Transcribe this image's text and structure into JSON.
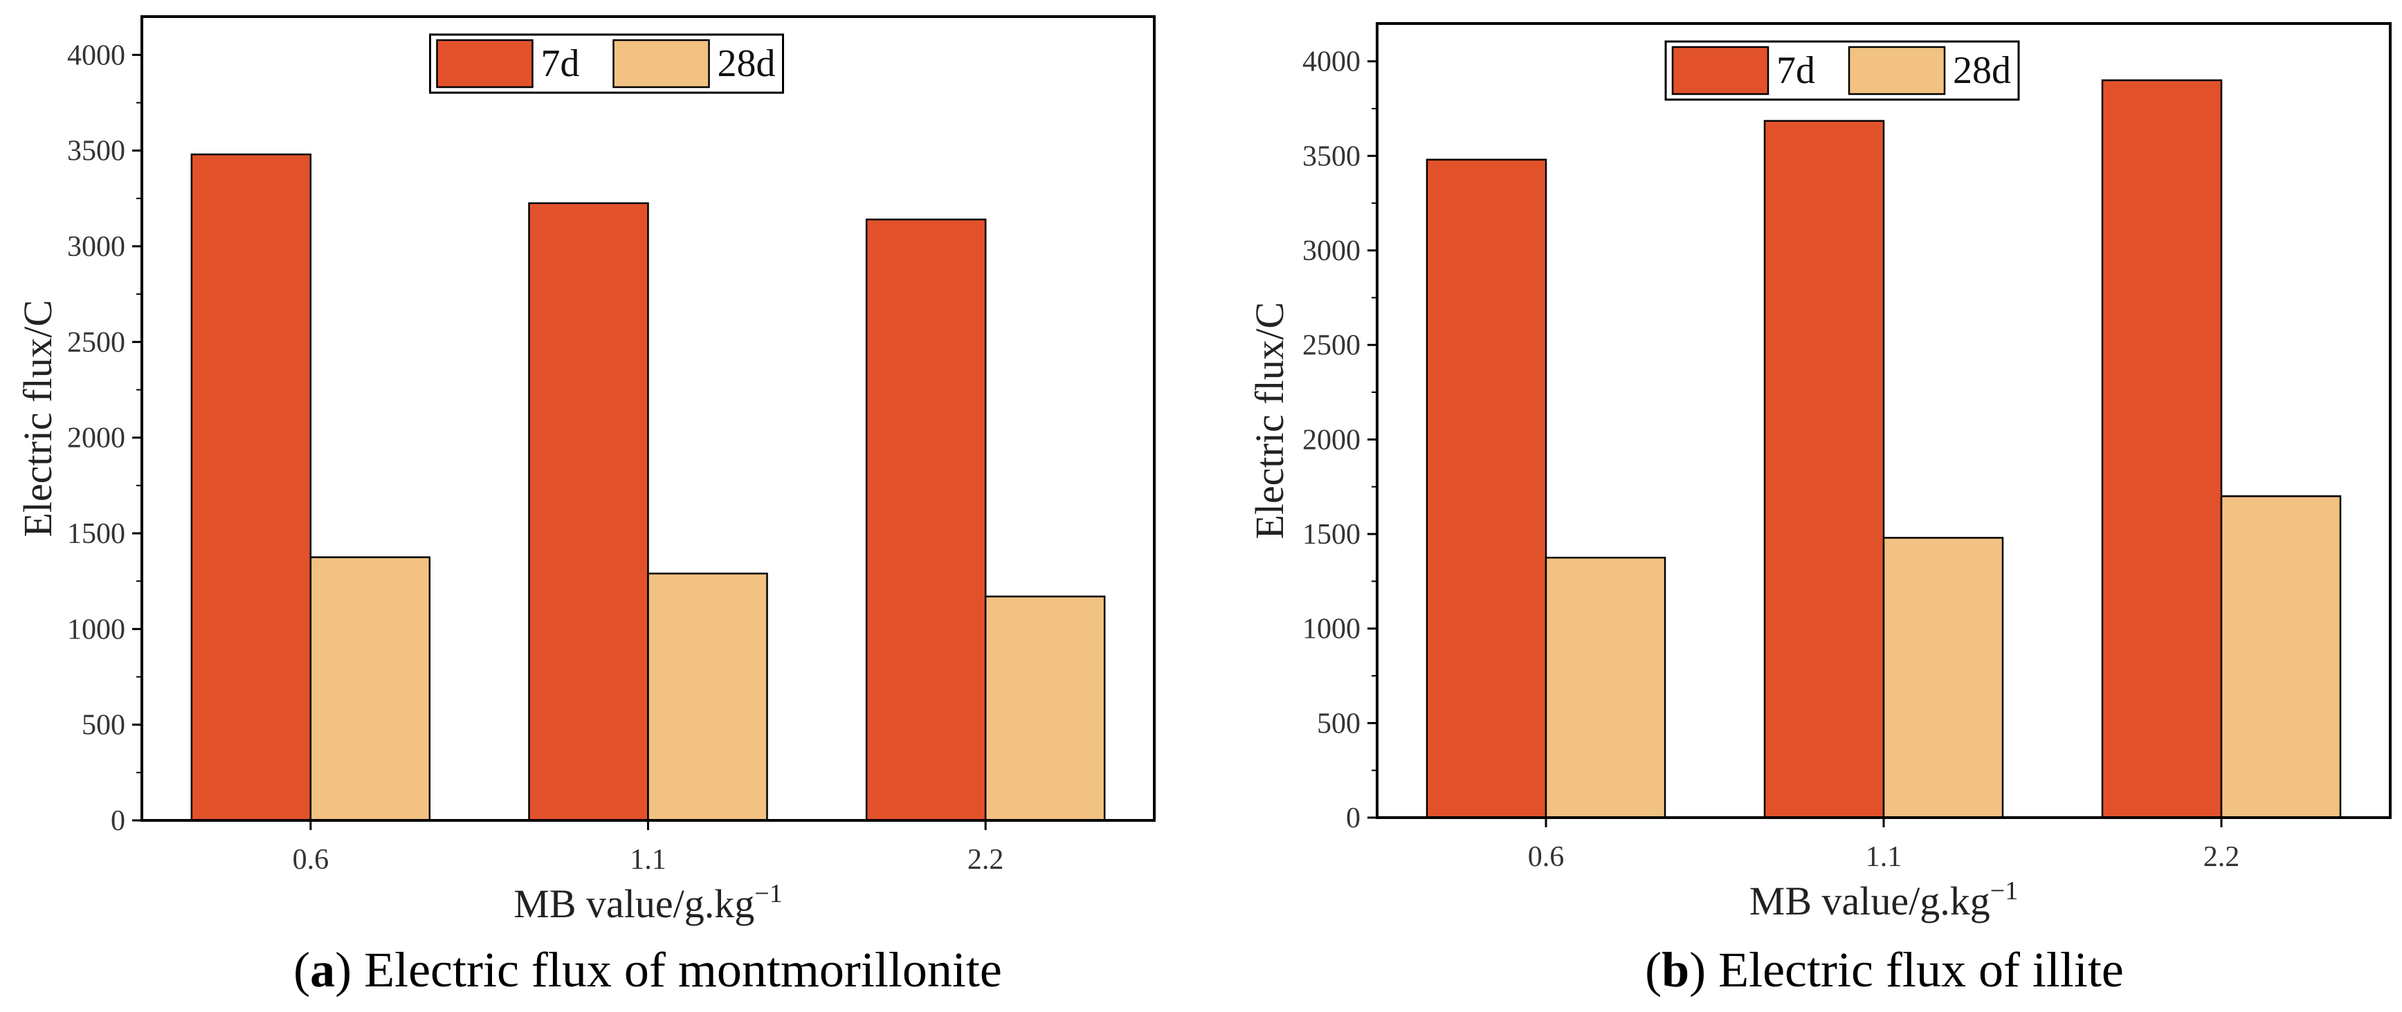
{
  "colors": {
    "series_7d": "#E2522A",
    "series_28d": "#F2C283",
    "axis": "#000000"
  },
  "chart_data": [
    {
      "type": "bar",
      "panel": "a",
      "caption_letter": "a",
      "caption_text": " Electric flux of montmorillonite",
      "categories": [
        "0.6",
        "1.1",
        "2.2"
      ],
      "series": [
        {
          "name": "7d",
          "values": [
            3480,
            3225,
            3140
          ]
        },
        {
          "name": "28d",
          "values": [
            1375,
            1290,
            1170
          ]
        }
      ],
      "xlabel_main": "MB value/g.kg",
      "xlabel_sup": "−1",
      "ylabel": "Electric flux/C",
      "ylim": [
        0,
        4200
      ],
      "yticks": [
        "0",
        "500",
        "1000",
        "1500",
        "2000",
        "2500",
        "3000",
        "3500",
        "4000"
      ],
      "legend_position": "top-center",
      "grid": false
    },
    {
      "type": "bar",
      "panel": "b",
      "caption_letter": "b",
      "caption_text": " Electric flux of illite",
      "categories": [
        "0.6",
        "1.1",
        "2.2"
      ],
      "series": [
        {
          "name": "7d",
          "values": [
            3480,
            3685,
            3900
          ]
        },
        {
          "name": "28d",
          "values": [
            1375,
            1480,
            1700
          ]
        }
      ],
      "xlabel_main": "MB value/g.kg",
      "xlabel_sup": "−1",
      "ylabel": "Electric flux/C",
      "ylim": [
        0,
        4200
      ],
      "yticks": [
        "0",
        "500",
        "1000",
        "1500",
        "2000",
        "2500",
        "3000",
        "3500",
        "4000"
      ],
      "legend_position": "top-center",
      "grid": false
    }
  ]
}
